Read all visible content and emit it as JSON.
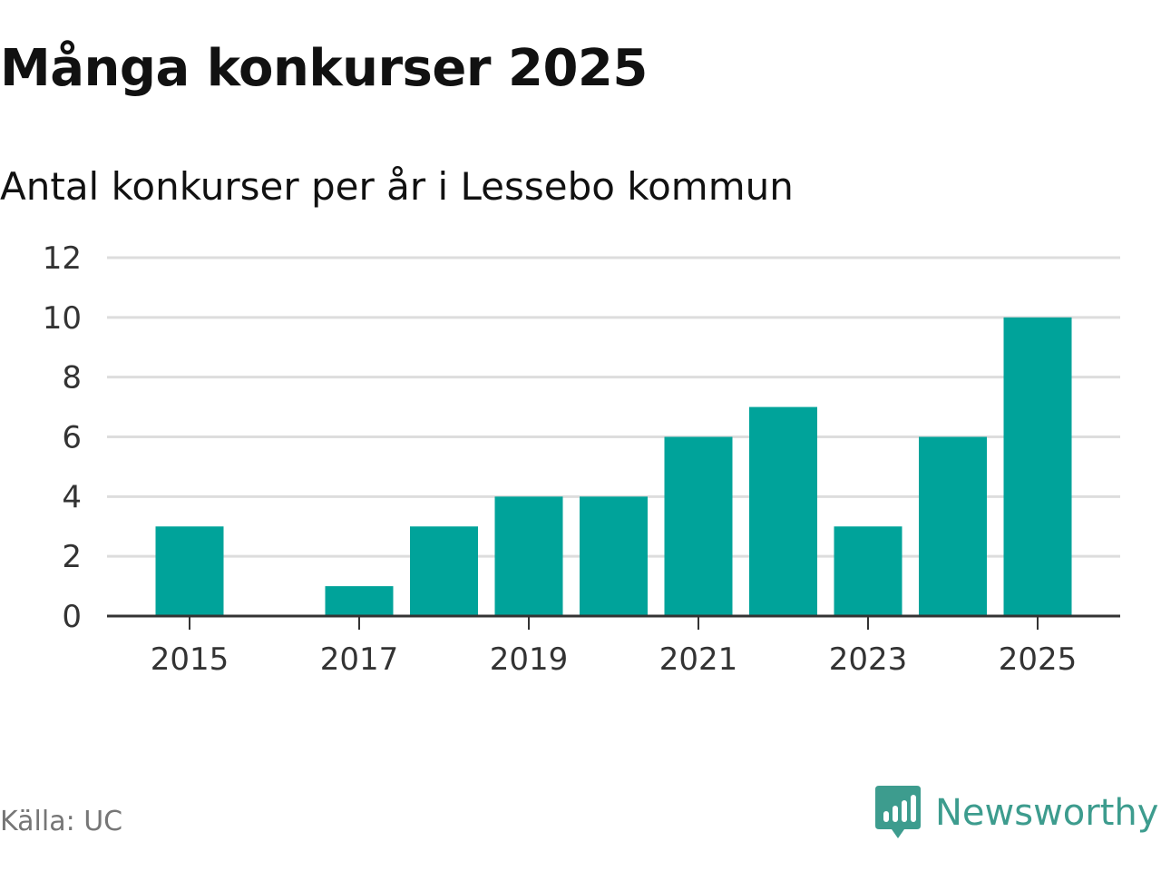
{
  "header": {
    "title": "Många konkurser 2025",
    "subtitle": "Antal konkurser per år i Lessebo kommun"
  },
  "footer": {
    "source": "Källa: UC",
    "brand": "Newsworthy",
    "brand_icon": "newsworthy-logo-icon"
  },
  "colors": {
    "bar": "#00a39a",
    "grid": "#dddddd",
    "axis": "#333333",
    "brand": "#3d9c8e"
  },
  "chart_data": {
    "type": "bar",
    "categories": [
      "2015",
      "2016",
      "2017",
      "2018",
      "2019",
      "2020",
      "2021",
      "2022",
      "2023",
      "2024",
      "2025"
    ],
    "values": [
      3,
      0,
      1,
      3,
      4,
      4,
      6,
      7,
      3,
      6,
      10
    ],
    "x_tick_labels": [
      "2015",
      "2017",
      "2019",
      "2021",
      "2023",
      "2025"
    ],
    "y_ticks": [
      0,
      2,
      4,
      6,
      8,
      10,
      12
    ],
    "ylim": [
      0,
      12
    ],
    "grid": true,
    "legend": false
  }
}
